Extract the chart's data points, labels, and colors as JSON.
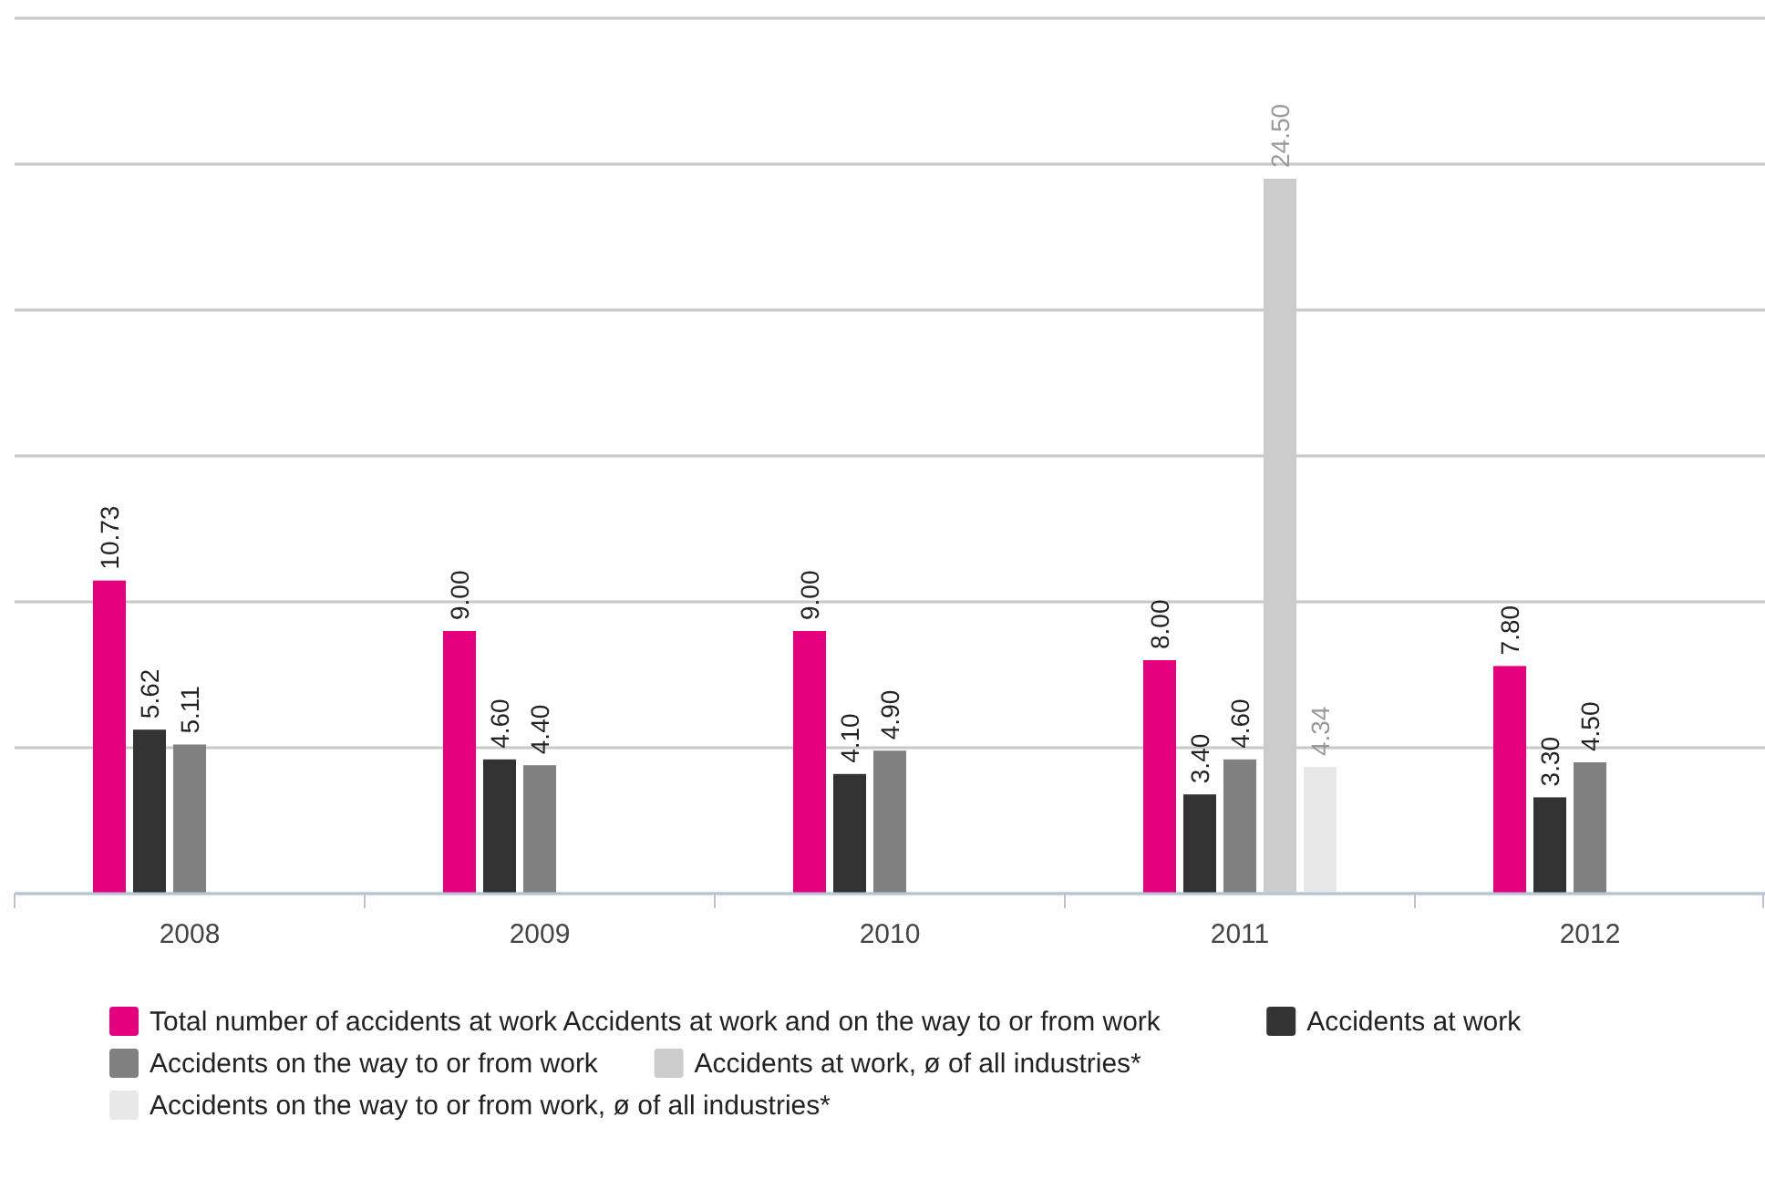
{
  "chart_data": {
    "type": "bar",
    "categories": [
      "2008",
      "2009",
      "2010",
      "2011",
      "2012"
    ],
    "series": [
      {
        "name": "Total number of accidents at work Accidents at work and on the way to or from work",
        "color": "#e5007d",
        "values": [
          10.73,
          9.0,
          9.0,
          8.0,
          7.8
        ],
        "value_labels": [
          "10.73",
          "9.00",
          "9.00",
          "8.00",
          "7.80"
        ]
      },
      {
        "name": "Accidents at work",
        "color": "#333333",
        "values": [
          5.62,
          4.6,
          4.1,
          3.4,
          3.3
        ],
        "value_labels": [
          "5.62",
          "4.60",
          "4.10",
          "3.40",
          "3.30"
        ]
      },
      {
        "name": "Accidents on the way to or from work",
        "color": "#808080",
        "values": [
          5.11,
          4.4,
          4.9,
          4.6,
          4.5
        ],
        "value_labels": [
          "5.11",
          "4.40",
          "4.90",
          "4.60",
          "4.50"
        ]
      },
      {
        "name": "Accidents at work, ø of all industries*",
        "color": "#cccccc",
        "values": [
          null,
          null,
          null,
          24.5,
          null
        ],
        "value_labels": [
          null,
          null,
          null,
          "24.50",
          null
        ]
      },
      {
        "name": "Accidents on the way to or from work, ø of all industries*",
        "color": "#e8e8e8",
        "values": [
          null,
          null,
          null,
          4.34,
          null
        ],
        "value_labels": [
          null,
          null,
          null,
          "4.34",
          null
        ]
      }
    ],
    "ylim": [
      0,
      30
    ],
    "yticks": [
      {
        "value": 0,
        "label": null
      },
      {
        "value": 5,
        "label": null
      },
      {
        "value": 10,
        "label": null
      },
      {
        "value": 15,
        "label": null
      },
      {
        "value": 20,
        "label": null
      },
      {
        "value": 25,
        "label": null
      },
      {
        "value": 30,
        "label": null
      }
    ],
    "tick_labels": "x",
    "grid": "y",
    "legend": "bottom"
  }
}
